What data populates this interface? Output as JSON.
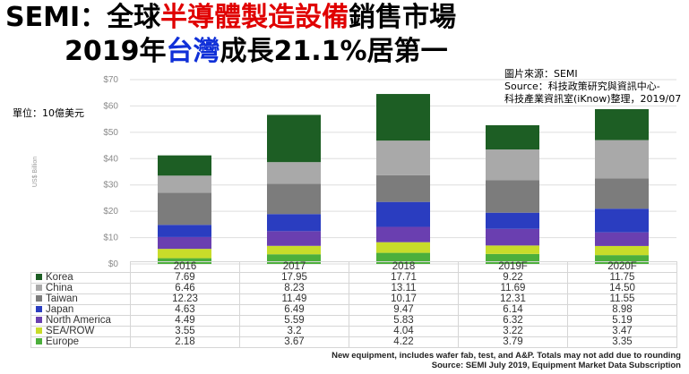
{
  "title": {
    "line1_a": "SEMI：全球",
    "line1_b": "半導體製造設備",
    "line1_c": "銷售市場",
    "line2_a": "2019年",
    "line2_b": "台灣",
    "line2_c": "成長21.1%居第一"
  },
  "source_note": [
    "圖片來源：SEMI",
    "Source：科技政策研究與資訊中心-",
    "科技產業資訊室(iKnow)整理，2019/07"
  ],
  "unit_label": "單位：10億美元",
  "footnotes": [
    "New equipment, includes wafer fab, test, and A&P. Totals may not add due to rounding",
    "Source: SEMI July 2019, Equipment Market Data Subscription"
  ],
  "chart_data": {
    "type": "bar",
    "stacked": true,
    "categories": [
      "2016",
      "2017",
      "2018",
      "2019F",
      "2020F"
    ],
    "ylabel": "US$ Billion",
    "ylim": [
      0,
      70
    ],
    "yticks": [
      "$0",
      "$10",
      "$20",
      "$30",
      "$40",
      "$50",
      "$60",
      "$70"
    ],
    "ytick_values": [
      0,
      10,
      20,
      30,
      40,
      50,
      60,
      70
    ],
    "grid": true,
    "legend": "table-below",
    "series": [
      {
        "name": "Europe",
        "color": "#4caf3c",
        "values": [
          "2.18",
          "3.67",
          "4.22",
          "3.79",
          "3.35"
        ]
      },
      {
        "name": "SEA/ROW",
        "color": "#c8dc2a",
        "values": [
          "3.55",
          "3.2",
          "4.04",
          "3.22",
          "3.47"
        ]
      },
      {
        "name": "North America",
        "color": "#6a3fb0",
        "values": [
          "4.49",
          "5.59",
          "5.83",
          "6.32",
          "5.19"
        ]
      },
      {
        "name": "Japan",
        "color": "#2a3dc0",
        "values": [
          "4.63",
          "6.49",
          "9.47",
          "6.14",
          "8.98"
        ]
      },
      {
        "name": "Taiwan",
        "color": "#7c7c7c",
        "values": [
          "12.23",
          "11.49",
          "10.17",
          "12.31",
          "11.55"
        ]
      },
      {
        "name": "China",
        "color": "#a9a9a9",
        "values": [
          "6.46",
          "8.23",
          "13.11",
          "11.69",
          "14.50"
        ]
      },
      {
        "name": "Korea",
        "color": "#1d5e24",
        "values": [
          "7.69",
          "17.95",
          "17.71",
          "9.22",
          "11.75"
        ]
      }
    ]
  }
}
